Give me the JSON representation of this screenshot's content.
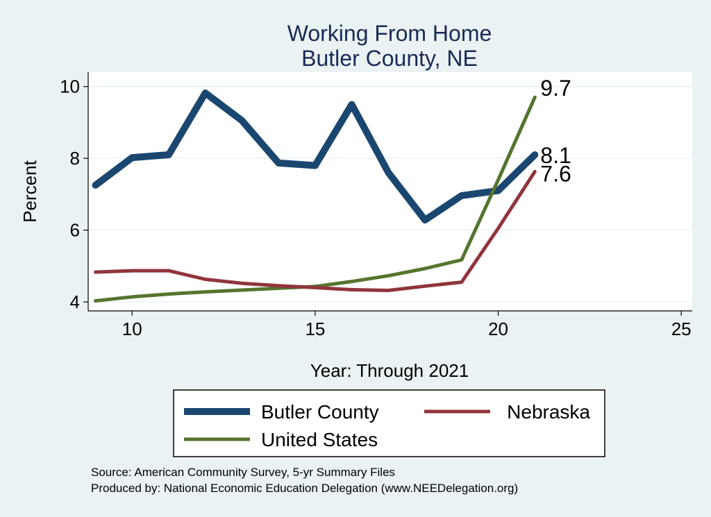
{
  "chart_data": {
    "type": "line",
    "title": "Working From Home",
    "subtitle": "Butler County, NE",
    "xlabel": "Year: Through 2021",
    "ylabel": "Percent",
    "xlim": [
      8.8,
      25.3
    ],
    "ylim": [
      3.75,
      10.4
    ],
    "xticks": [
      10,
      15,
      20,
      25
    ],
    "yticks": [
      4,
      6,
      8,
      10
    ],
    "grid": true,
    "legend_position": "bottom",
    "series": [
      {
        "name": "Butler County",
        "color": "#1a476f",
        "x": [
          9,
          10,
          11,
          12,
          13,
          14,
          15,
          16,
          17,
          18,
          19,
          20,
          21
        ],
        "y": [
          7.25,
          8.02,
          8.1,
          9.82,
          9.05,
          7.87,
          7.8,
          9.5,
          7.6,
          6.28,
          6.96,
          7.1,
          8.1
        ],
        "end_label": "8.1"
      },
      {
        "name": "Nebraska",
        "color": "#90353b",
        "x": [
          9,
          10,
          11,
          12,
          13,
          14,
          15,
          16,
          17,
          18,
          19,
          20,
          21
        ],
        "y": [
          4.83,
          4.87,
          4.87,
          4.63,
          4.52,
          4.45,
          4.4,
          4.34,
          4.32,
          4.44,
          4.55,
          6.05,
          7.63
        ],
        "end_label": "7.6"
      },
      {
        "name": "United States",
        "color": "#55752f",
        "x": [
          9,
          10,
          11,
          12,
          13,
          14,
          15,
          16,
          17,
          18,
          19,
          20,
          21
        ],
        "y": [
          4.03,
          4.14,
          4.22,
          4.28,
          4.33,
          4.38,
          4.43,
          4.57,
          4.73,
          4.93,
          5.17,
          7.4,
          9.7
        ],
        "end_label": "9.7"
      }
    ],
    "notes": [
      "Source: American Community Survey, 5-yr Summary Files",
      "Produced by: National Economic Education Delegation (www.NEEDelegation.org)"
    ]
  }
}
